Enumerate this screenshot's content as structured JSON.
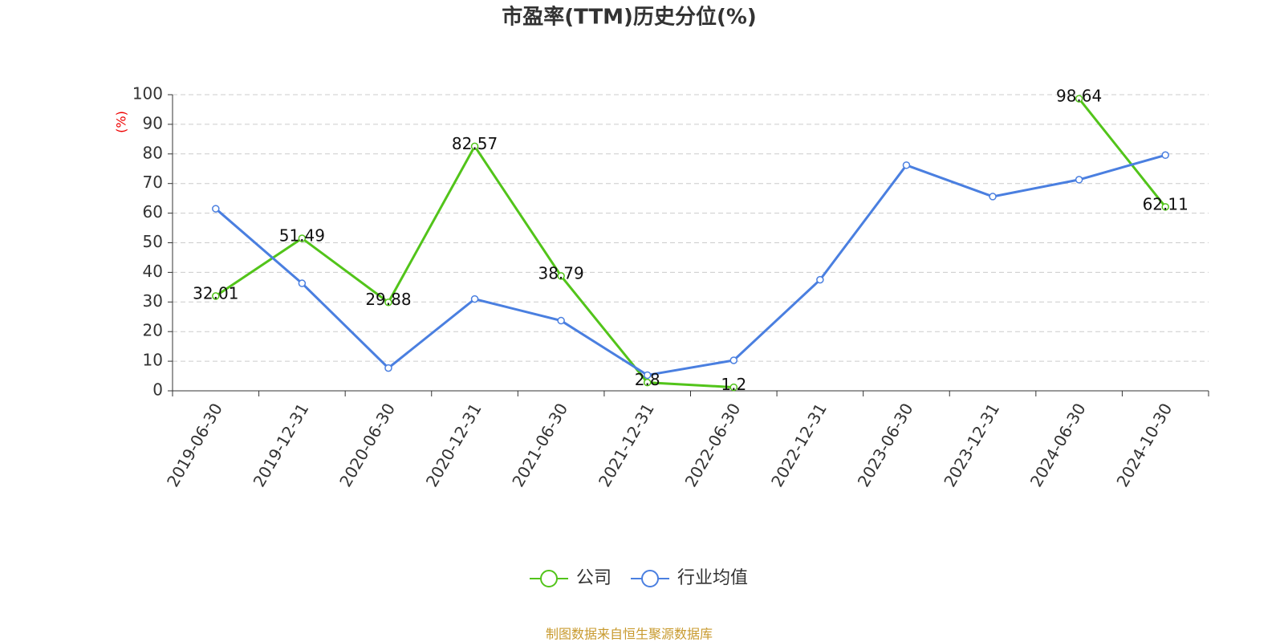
{
  "chart_data": {
    "type": "line",
    "title": "市盈率(TTM)历史分位(%)",
    "y_label": "(%)",
    "categories": [
      "2019-06-30",
      "2019-12-31",
      "2020-06-30",
      "2020-12-31",
      "2021-06-30",
      "2021-12-31",
      "2022-06-30",
      "2022-12-31",
      "2023-06-30",
      "2023-12-31",
      "2024-06-30",
      "2024-10-30"
    ],
    "series": [
      {
        "name": "公司",
        "color": "#52c41a",
        "values": [
          32.01,
          51.49,
          29.88,
          82.57,
          38.79,
          2.8,
          1.2,
          null,
          null,
          null,
          98.64,
          62.11
        ]
      },
      {
        "name": "行业均值",
        "color": "#4a7fe0",
        "values": [
          61.5,
          36.3,
          7.7,
          31.0,
          23.7,
          5.3,
          10.3,
          37.5,
          76.2,
          65.6,
          71.3,
          79.6
        ]
      }
    ],
    "data_labels_series": 0,
    "ylim": [
      0,
      100
    ],
    "yticks": [
      0,
      10,
      20,
      30,
      40,
      50,
      60,
      70,
      80,
      90,
      100
    ],
    "grid": true,
    "legend": "bottom",
    "source": "制图数据来自恒生聚源数据库"
  }
}
